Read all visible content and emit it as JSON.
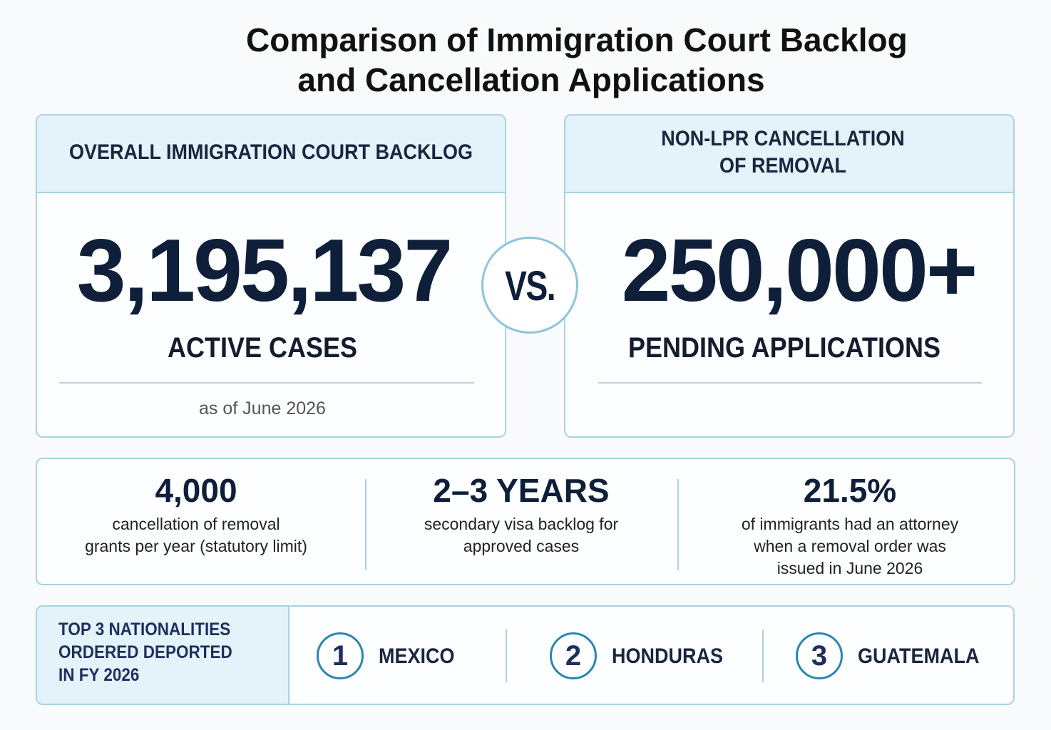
{
  "title_lines": [
    "Comparison of Immigration Court Backlog",
    "and Cancellation Applications"
  ],
  "cards": [
    {
      "header_lines": [
        "OVERALL IMMIGRATION COURT BACKLOG"
      ],
      "figure": "3,195,137",
      "label": "ACTIVE CASES",
      "note": "as of June 2026"
    },
    {
      "header_lines": [
        "NON-LPR CANCELLATION",
        "OF REMOVAL"
      ],
      "figure": "250,000+",
      "label": "PENDING APPLICATIONS"
    }
  ],
  "versus": "VS.",
  "stats": [
    {
      "figure": "4,000",
      "lines": [
        "cancellation of removal",
        "grants per year (statutory limit)"
      ]
    },
    {
      "figure": "2–3 YEARS",
      "lines": [
        "secondary visa backlog for",
        "approved cases"
      ]
    },
    {
      "figure": "21.5%",
      "lines": [
        "of immigrants had an attorney",
        "when a removal order was",
        "issued in June 2026"
      ]
    }
  ],
  "nationalities": {
    "heading_lines": [
      "TOP 3 NATIONALITIES",
      "ORDERED DEPORTED",
      "IN FY 2026"
    ],
    "items": [
      {
        "rank": "1",
        "name": "MEXICO"
      },
      {
        "rank": "2",
        "name": "HONDURAS"
      },
      {
        "rank": "3",
        "name": "GUATEMALA"
      }
    ]
  }
}
